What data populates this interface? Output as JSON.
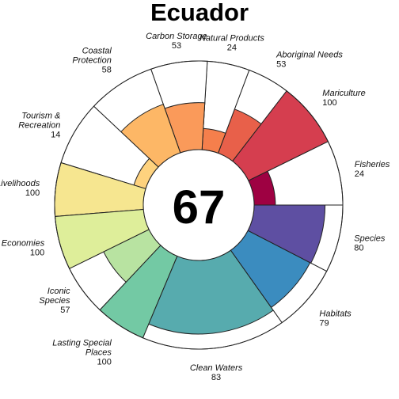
{
  "chart_data": {
    "type": "flower",
    "title": "Ecuador",
    "overall_score": "67",
    "ylim": [
      0,
      100
    ],
    "categories": [
      {
        "label": [
          "Fisheries"
        ],
        "value": 24,
        "weight": 1.15,
        "color": "#9E0142"
      },
      {
        "label": [
          "Mariculture"
        ],
        "value": 100,
        "weight": 1.15,
        "color": "#D53E4F"
      },
      {
        "label": [
          "Aboriginal Needs"
        ],
        "value": 53,
        "weight": 0.75,
        "color": "#E8604A"
      },
      {
        "label": [
          "Natural Products"
        ],
        "value": 24,
        "weight": 0.75,
        "color": "#F57F4C"
      },
      {
        "label": [
          "Carbon Storage"
        ],
        "value": 53,
        "weight": 1.0,
        "color": "#FA9A5A"
      },
      {
        "label": [
          "Coastal",
          "Protection"
        ],
        "value": 58,
        "weight": 1.2,
        "color": "#FDB766"
      },
      {
        "label": [
          "Tourism &",
          "Recreation"
        ],
        "value": 14,
        "weight": 1.15,
        "color": "#FED27E"
      },
      {
        "label": [
          "Livelihoods"
        ],
        "value": 100,
        "weight": 0.95,
        "color": "#F6E690"
      },
      {
        "label": [
          "Economies"
        ],
        "value": 100,
        "weight": 0.95,
        "color": "#DEEE9A"
      },
      {
        "label": [
          "Iconic",
          "Species"
        ],
        "value": 57,
        "weight": 0.9,
        "color": "#B8E3A1"
      },
      {
        "label": [
          "Lasting Special",
          "Places"
        ],
        "value": 100,
        "weight": 0.9,
        "color": "#73C9A4"
      },
      {
        "label": [
          "Clean Waters"
        ],
        "value": 83,
        "weight": 2.55,
        "color": "#57ABAE"
      },
      {
        "label": [
          "Habitats"
        ],
        "value": 79,
        "weight": 1.2,
        "color": "#3B8CBF"
      },
      {
        "label": [
          "Species"
        ],
        "value": 80,
        "weight": 1.2,
        "color": "#5E4FA2"
      }
    ]
  }
}
